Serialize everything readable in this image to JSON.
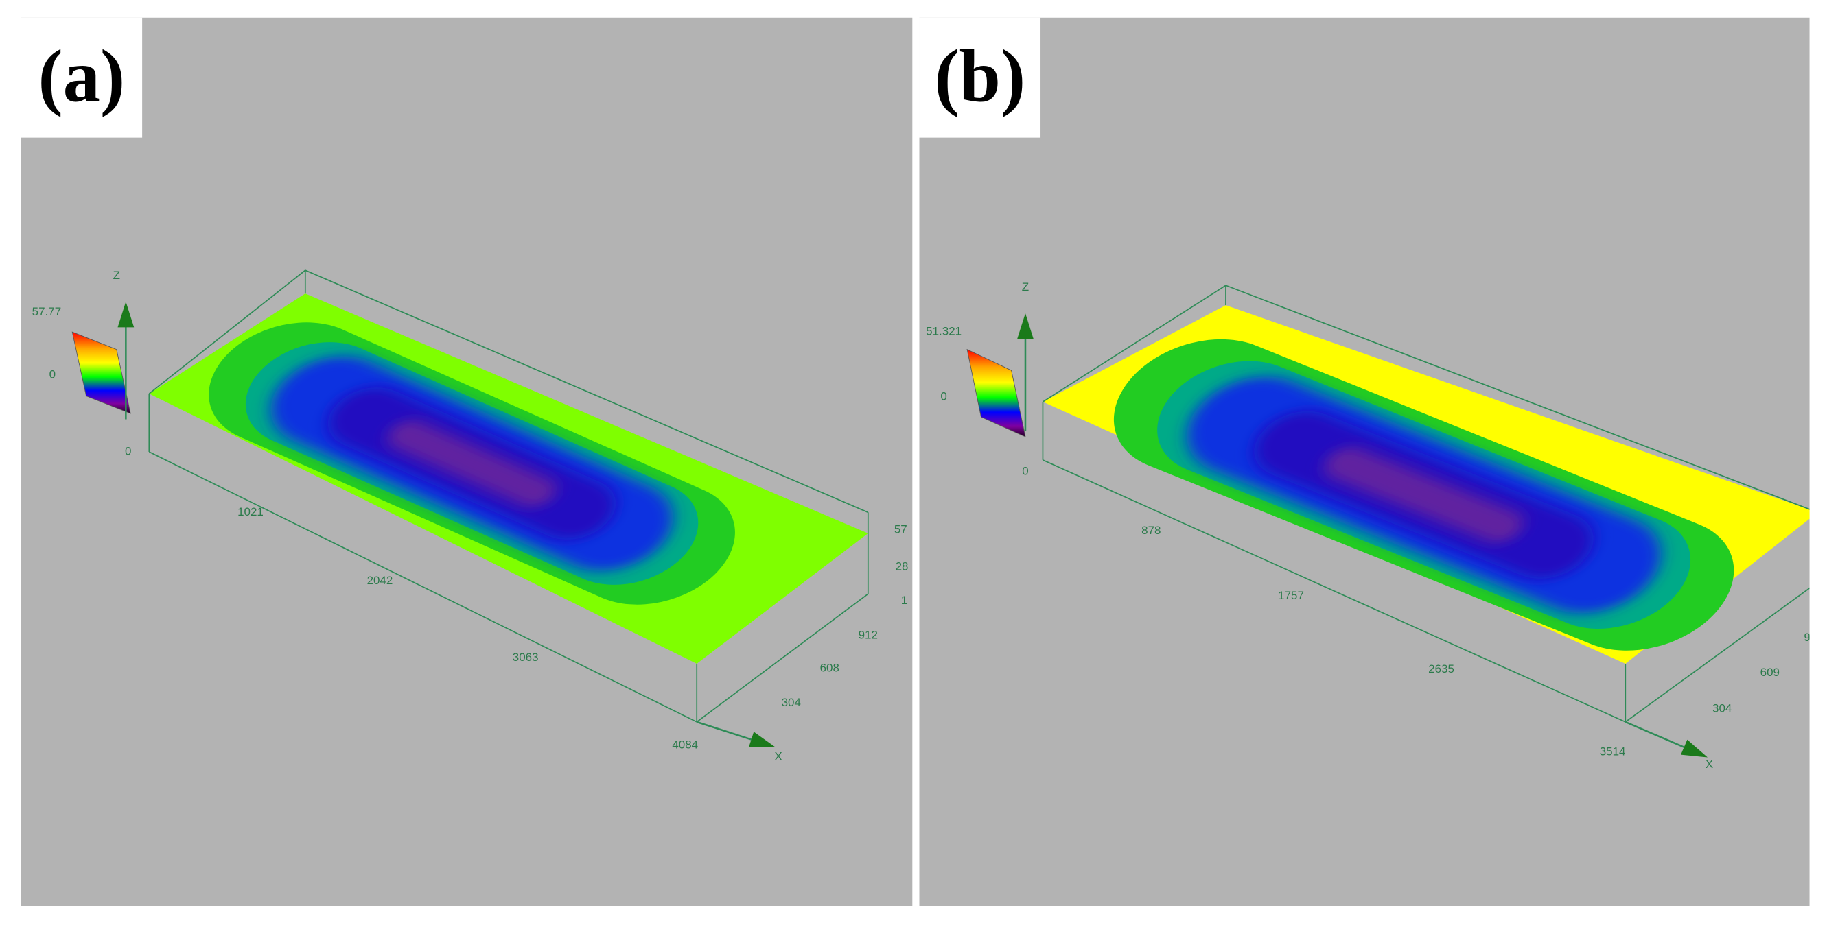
{
  "panels": [
    {
      "label": "(a)",
      "z_axis": "Z",
      "x_axis": "X",
      "scale_max": "57.77",
      "scale_zero": "0",
      "origin": "0",
      "x_ticks": [
        "1021",
        "2042",
        "3063",
        "4084"
      ],
      "y_ticks": [
        "912",
        "608",
        "304"
      ],
      "edge_ticks": [
        "57",
        "28",
        "1"
      ]
    },
    {
      "label": "(b)",
      "z_axis": "Z",
      "x_axis": "X",
      "scale_max": "51.321",
      "scale_zero": "0",
      "origin": "0",
      "x_ticks": [
        "878",
        "1757",
        "2635",
        "3514"
      ],
      "y_ticks": [
        "609",
        "304"
      ],
      "edge_ticks": [
        "9"
      ]
    }
  ]
}
